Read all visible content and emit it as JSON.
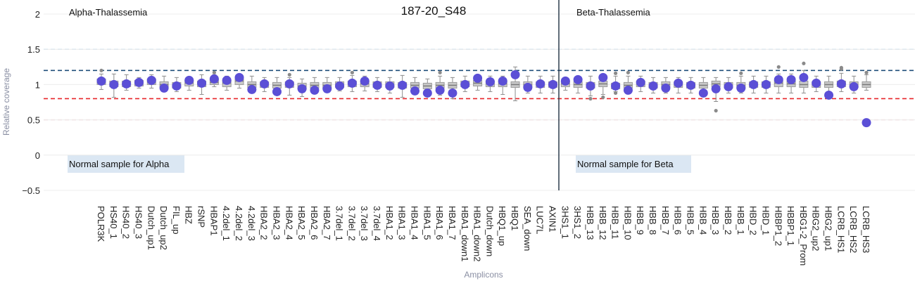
{
  "header": {
    "sample_title": "187-20_S48",
    "left_panel_label": "Alpha-Thalassemia",
    "right_panel_label": "Beta-Thalassemia",
    "left_note": "Normal sample for Alpha",
    "right_note": "Normal sample for Beta"
  },
  "chart_data": {
    "type": "scatter",
    "title": "187-20_S48",
    "xlabel": "Amplicons",
    "ylabel": "Relative coverage",
    "ylim": [
      -0.5,
      2
    ],
    "yticks": [
      -0.5,
      0,
      0.5,
      1,
      1.5,
      2
    ],
    "reference_lines": [
      {
        "y": 1.5,
        "color": "#b9d6ec",
        "style": "dashed"
      },
      {
        "y": 1.2,
        "color": "#1f4e79",
        "style": "dashed"
      },
      {
        "y": 0.8,
        "color": "#e8262a",
        "style": "dashed"
      },
      {
        "y": 0.5,
        "color": "#f4c6cf",
        "style": "dashed"
      }
    ],
    "divider_after": "AXIN1",
    "colors": {
      "sample": "#5b4fd6",
      "box": "#9a9a9a",
      "divider": "#2d3d4d"
    },
    "categories": [
      "POLR3K",
      "HS40_1",
      "HS40_2",
      "HS40_3",
      "Dutch_up1",
      "Dutch_up2",
      "FIL_up",
      "HBZ",
      "rSNP",
      "HBAP1",
      "4.2del_1",
      "4.2del_2",
      "4.2del_3",
      "HBA2_2",
      "HBA2_3",
      "HBA2_4",
      "HBA2_5",
      "HBA2_6",
      "HBA2_7",
      "3.7del_1",
      "3.7del_2",
      "3.7del_3",
      "3.7del_4",
      "HBA1_2",
      "HBA1_3",
      "HBA1_4",
      "HBA1_5",
      "HBA1_6",
      "HBA1_7",
      "HBA1_down1",
      "HBA1_down2",
      "Dutch_down",
      "HBQ1_up",
      "HBQ1",
      "SEA_down",
      "LUC7L",
      "AXIN1",
      "3HS1_1",
      "3HS1_2",
      "HBB_13",
      "HBB_12",
      "HBB_11",
      "HBB_10",
      "HBB_9",
      "HBB_8",
      "HBB_7",
      "HBB_6",
      "HBB_5",
      "HBB_4",
      "HBB_3",
      "HBB_2",
      "HBB_1",
      "HBD_2",
      "HBD_1",
      "HBBP1_2",
      "HBBP1_1",
      "HBG1-2_Prom",
      "HBG2_up2",
      "HBG2_up1",
      "LCRB_HS1",
      "LCRB_HS2",
      "LCRB_HS3"
    ],
    "sample_values": [
      1.05,
      1.0,
      1.01,
      1.03,
      1.06,
      0.95,
      0.98,
      1.06,
      1.02,
      1.08,
      1.06,
      1.1,
      0.93,
      1.01,
      0.9,
      1.01,
      0.94,
      0.92,
      0.94,
      0.98,
      1.02,
      1.05,
      0.99,
      0.98,
      0.99,
      0.91,
      0.88,
      0.92,
      0.88,
      1.0,
      1.09,
      1.04,
      1.05,
      1.14,
      0.96,
      1.01,
      1.0,
      1.05,
      1.07,
      0.98,
      1.1,
      0.98,
      0.92,
      1.03,
      0.98,
      0.95,
      1.02,
      0.99,
      0.88,
      0.94,
      0.97,
      0.95,
      1.0,
      1.0,
      1.07,
      1.07,
      1.1,
      1.02,
      0.85,
      1.01,
      0.97,
      0.46
    ],
    "reference_boxes": [
      {
        "q1": 1.0,
        "med": 1.04,
        "q3": 1.08,
        "lo": 0.93,
        "hi": 1.15,
        "out": [
          1.2
        ]
      },
      {
        "q1": 0.97,
        "med": 1.01,
        "q3": 1.05,
        "lo": 0.82,
        "hi": 1.15,
        "out": []
      },
      {
        "q1": 0.97,
        "med": 1.01,
        "q3": 1.05,
        "lo": 0.92,
        "hi": 1.14,
        "out": []
      },
      {
        "q1": 0.98,
        "med": 1.02,
        "q3": 1.06,
        "lo": 0.95,
        "hi": 1.1,
        "out": []
      },
      {
        "q1": 1.0,
        "med": 1.04,
        "q3": 1.08,
        "lo": 0.95,
        "hi": 1.14,
        "out": []
      },
      {
        "q1": 0.96,
        "med": 1.0,
        "q3": 1.04,
        "lo": 0.9,
        "hi": 1.12,
        "out": []
      },
      {
        "q1": 0.95,
        "med": 0.99,
        "q3": 1.03,
        "lo": 0.9,
        "hi": 1.1,
        "out": []
      },
      {
        "q1": 0.98,
        "med": 1.02,
        "q3": 1.06,
        "lo": 0.92,
        "hi": 1.1,
        "out": []
      },
      {
        "q1": 0.97,
        "med": 1.01,
        "q3": 1.05,
        "lo": 0.86,
        "hi": 1.14,
        "out": []
      },
      {
        "q1": 1.0,
        "med": 1.03,
        "q3": 1.08,
        "lo": 0.97,
        "hi": 1.14,
        "out": [
          1.17
        ]
      },
      {
        "q1": 0.97,
        "med": 1.02,
        "q3": 1.06,
        "lo": 0.92,
        "hi": 1.12,
        "out": []
      },
      {
        "q1": 1.0,
        "med": 1.05,
        "q3": 1.08,
        "lo": 0.95,
        "hi": 1.14,
        "out": []
      },
      {
        "q1": 0.96,
        "med": 1.0,
        "q3": 1.04,
        "lo": 0.9,
        "hi": 1.12,
        "out": []
      },
      {
        "q1": 0.96,
        "med": 1.0,
        "q3": 1.04,
        "lo": 0.9,
        "hi": 1.1,
        "out": []
      },
      {
        "q1": 0.95,
        "med": 0.99,
        "q3": 1.03,
        "lo": 0.88,
        "hi": 1.1,
        "out": []
      },
      {
        "q1": 0.96,
        "med": 1.0,
        "q3": 1.04,
        "lo": 0.85,
        "hi": 1.1,
        "out": [
          1.14
        ]
      },
      {
        "q1": 0.94,
        "med": 0.98,
        "q3": 1.02,
        "lo": 0.83,
        "hi": 1.08,
        "out": []
      },
      {
        "q1": 0.95,
        "med": 0.99,
        "q3": 1.03,
        "lo": 0.88,
        "hi": 1.1,
        "out": []
      },
      {
        "q1": 0.95,
        "med": 0.99,
        "q3": 1.03,
        "lo": 0.9,
        "hi": 1.1,
        "out": []
      },
      {
        "q1": 0.96,
        "med": 1.0,
        "q3": 1.04,
        "lo": 0.91,
        "hi": 1.1,
        "out": []
      },
      {
        "q1": 0.97,
        "med": 1.01,
        "q3": 1.05,
        "lo": 0.9,
        "hi": 1.13,
        "out": [
          1.17
        ]
      },
      {
        "q1": 0.97,
        "med": 1.01,
        "q3": 1.05,
        "lo": 0.91,
        "hi": 1.12,
        "out": []
      },
      {
        "q1": 0.96,
        "med": 1.0,
        "q3": 1.04,
        "lo": 0.9,
        "hi": 1.1,
        "out": []
      },
      {
        "q1": 0.96,
        "med": 1.0,
        "q3": 1.04,
        "lo": 0.88,
        "hi": 1.1,
        "out": []
      },
      {
        "q1": 0.95,
        "med": 0.99,
        "q3": 1.03,
        "lo": 0.82,
        "hi": 1.13,
        "out": []
      },
      {
        "q1": 0.95,
        "med": 0.99,
        "q3": 1.03,
        "lo": 0.86,
        "hi": 1.1,
        "out": []
      },
      {
        "q1": 0.94,
        "med": 0.98,
        "q3": 1.02,
        "lo": 0.85,
        "hi": 1.08,
        "out": []
      },
      {
        "q1": 0.95,
        "med": 0.99,
        "q3": 1.03,
        "lo": 0.85,
        "hi": 1.12,
        "out": [
          1.17
        ]
      },
      {
        "q1": 0.95,
        "med": 0.99,
        "q3": 1.03,
        "lo": 0.8,
        "hi": 1.1,
        "out": []
      },
      {
        "q1": 0.97,
        "med": 1.01,
        "q3": 1.05,
        "lo": 0.9,
        "hi": 1.12,
        "out": []
      },
      {
        "q1": 0.98,
        "med": 1.02,
        "q3": 1.06,
        "lo": 0.92,
        "hi": 1.12,
        "out": []
      },
      {
        "q1": 0.97,
        "med": 1.01,
        "q3": 1.05,
        "lo": 0.9,
        "hi": 1.12,
        "out": []
      },
      {
        "q1": 0.97,
        "med": 1.01,
        "q3": 1.05,
        "lo": 0.86,
        "hi": 1.12,
        "out": []
      },
      {
        "q1": 0.96,
        "med": 1.0,
        "q3": 1.04,
        "lo": 0.77,
        "hi": 1.25,
        "out": []
      },
      {
        "q1": 0.96,
        "med": 1.0,
        "q3": 1.04,
        "lo": 0.88,
        "hi": 1.12,
        "out": []
      },
      {
        "q1": 0.96,
        "med": 1.0,
        "q3": 1.04,
        "lo": 0.88,
        "hi": 1.12,
        "out": []
      },
      {
        "q1": 0.96,
        "med": 1.0,
        "q3": 1.04,
        "lo": 0.88,
        "hi": 1.12,
        "out": []
      },
      {
        "q1": 0.97,
        "med": 1.01,
        "q3": 1.05,
        "lo": 0.92,
        "hi": 1.1,
        "out": []
      },
      {
        "q1": 0.96,
        "med": 1.0,
        "q3": 1.04,
        "lo": 0.88,
        "hi": 1.1,
        "out": []
      },
      {
        "q1": 0.95,
        "med": 0.99,
        "q3": 1.03,
        "lo": 0.84,
        "hi": 1.12,
        "out": [
          0.8
        ]
      },
      {
        "q1": 0.97,
        "med": 1.01,
        "q3": 1.05,
        "lo": 0.86,
        "hi": 1.12,
        "out": [
          0.82
        ]
      },
      {
        "q1": 0.94,
        "med": 0.98,
        "q3": 1.02,
        "lo": 0.9,
        "hi": 1.12,
        "out": [
          1.16,
          0.88
        ]
      },
      {
        "q1": 0.95,
        "med": 0.99,
        "q3": 1.03,
        "lo": 0.88,
        "hi": 1.12,
        "out": [
          1.17
        ]
      },
      {
        "q1": 0.97,
        "med": 1.01,
        "q3": 1.05,
        "lo": 0.9,
        "hi": 1.12,
        "out": []
      },
      {
        "q1": 0.95,
        "med": 0.99,
        "q3": 1.03,
        "lo": 0.88,
        "hi": 1.1,
        "out": []
      },
      {
        "q1": 0.96,
        "med": 1.0,
        "q3": 1.04,
        "lo": 0.88,
        "hi": 1.1,
        "out": []
      },
      {
        "q1": 0.96,
        "med": 1.0,
        "q3": 1.04,
        "lo": 0.88,
        "hi": 1.1,
        "out": []
      },
      {
        "q1": 0.95,
        "med": 0.99,
        "q3": 1.03,
        "lo": 0.88,
        "hi": 1.1,
        "out": []
      },
      {
        "q1": 0.95,
        "med": 0.99,
        "q3": 1.03,
        "lo": 0.86,
        "hi": 1.1,
        "out": []
      },
      {
        "q1": 0.97,
        "med": 1.01,
        "q3": 1.05,
        "lo": 0.76,
        "hi": 1.1,
        "out": [
          0.63
        ]
      },
      {
        "q1": 0.95,
        "med": 0.99,
        "q3": 1.03,
        "lo": 0.88,
        "hi": 1.1,
        "out": []
      },
      {
        "q1": 0.95,
        "med": 0.99,
        "q3": 1.03,
        "lo": 0.88,
        "hi": 1.12,
        "out": [
          1.16
        ]
      },
      {
        "q1": 0.96,
        "med": 1.0,
        "q3": 1.04,
        "lo": 0.88,
        "hi": 1.12,
        "out": []
      },
      {
        "q1": 0.96,
        "med": 1.0,
        "q3": 1.04,
        "lo": 0.88,
        "hi": 1.12,
        "out": []
      },
      {
        "q1": 0.97,
        "med": 1.02,
        "q3": 1.06,
        "lo": 0.88,
        "hi": 1.15,
        "out": [
          1.25
        ]
      },
      {
        "q1": 0.97,
        "med": 1.01,
        "q3": 1.05,
        "lo": 0.88,
        "hi": 1.15,
        "out": []
      },
      {
        "q1": 0.96,
        "med": 1.0,
        "q3": 1.05,
        "lo": 0.88,
        "hi": 1.2,
        "out": [
          1.3
        ]
      },
      {
        "q1": 0.96,
        "med": 1.0,
        "q3": 1.04,
        "lo": 0.9,
        "hi": 1.12,
        "out": []
      },
      {
        "q1": 0.96,
        "med": 1.0,
        "q3": 1.04,
        "lo": 0.88,
        "hi": 1.12,
        "out": []
      },
      {
        "q1": 0.97,
        "med": 1.01,
        "q3": 1.05,
        "lo": 0.9,
        "hi": 1.16,
        "out": [
          1.22,
          1.24
        ]
      },
      {
        "q1": 0.96,
        "med": 1.0,
        "q3": 1.04,
        "lo": 0.88,
        "hi": 1.12,
        "out": []
      },
      {
        "q1": 0.96,
        "med": 1.0,
        "q3": 1.04,
        "lo": 0.92,
        "hi": 1.14,
        "out": [
          1.17
        ]
      }
    ]
  }
}
